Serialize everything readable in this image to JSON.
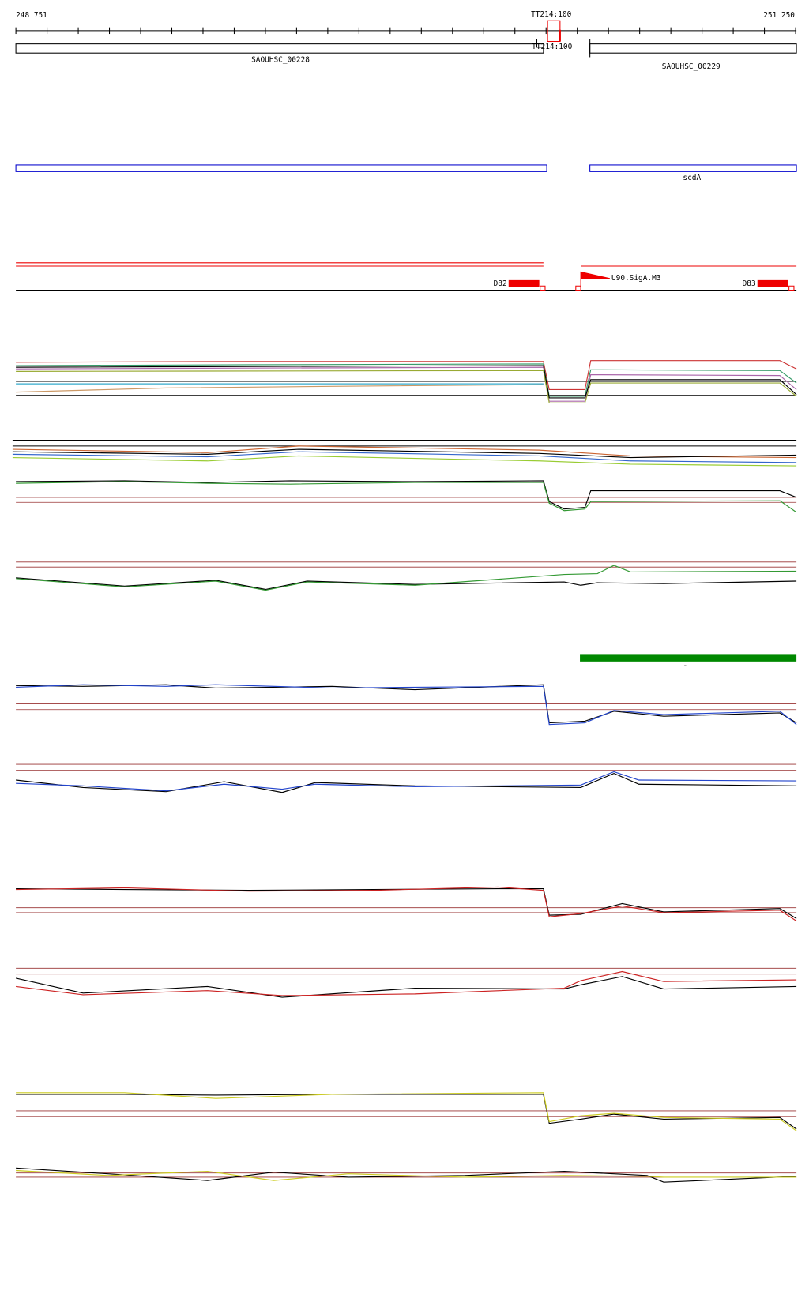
{
  "ruler": {
    "start": "248 751",
    "marker": "TT214:100",
    "end": "251 250"
  },
  "genes": {
    "terminator": "TT214:100",
    "left_gene": "SAOUHSC_00228",
    "right_gene": "SAOUHSC_00229"
  },
  "annotation": {
    "gene_name": "scdA"
  },
  "features": {
    "left_feature": "D82",
    "promoter": "U90.SigA.M3",
    "right_feature": "D83"
  },
  "segment": {
    "label": "-"
  }
}
